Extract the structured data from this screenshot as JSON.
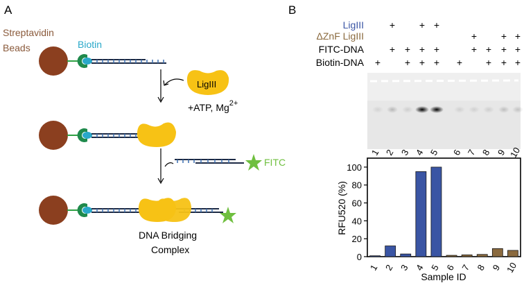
{
  "panel_a": {
    "label": "A",
    "beads_label_line1": "Streptavidin",
    "beads_label_line2": "Beads",
    "biotin_label": "Biotin",
    "ligiii_label": "LigIII",
    "reaction_label": "+ATP, Mg",
    "reaction_sup": "2+",
    "fitc_label": "FITC",
    "complex_line1": "DNA Bridging",
    "complex_line2": "Complex"
  },
  "panel_b": {
    "label": "B",
    "row_labels": [
      "LigIII",
      "ΔZnF LigIII",
      "FITC-DNA",
      "Biotin-DNA"
    ],
    "row_colors": [
      "#3a55a4",
      "#8a6a3e",
      "#000000",
      "#000000"
    ],
    "plus": "+",
    "rows_plus": [
      [
        2,
        4,
        5
      ],
      [
        7,
        9,
        10
      ],
      [
        2,
        3,
        4,
        5,
        7,
        8,
        9,
        10
      ],
      [
        1,
        3,
        4,
        5,
        6,
        8,
        9,
        10
      ]
    ],
    "lane_numbers": [
      "1",
      "2",
      "3",
      "4",
      "5",
      "6",
      "7",
      "8",
      "9",
      "10"
    ]
  },
  "chart_data": {
    "type": "bar",
    "categories": [
      "1",
      "2",
      "3",
      "4",
      "5",
      "6",
      "7",
      "8",
      "9",
      "10"
    ],
    "values": [
      1,
      12,
      3,
      95,
      100,
      1.5,
      2,
      2.5,
      9,
      7
    ],
    "colors": [
      "#3a55a4",
      "#3a55a4",
      "#3a55a4",
      "#3a55a4",
      "#3a55a4",
      "#8a6a3e",
      "#8a6a3e",
      "#8a6a3e",
      "#8a6a3e",
      "#8a6a3e"
    ],
    "xlabel": "Sample ID",
    "ylabel": "RFU520 (%)",
    "ylim": [
      0,
      110
    ],
    "yticks": [
      "0",
      "20",
      "40",
      "60",
      "80",
      "100"
    ],
    "grid": false
  }
}
